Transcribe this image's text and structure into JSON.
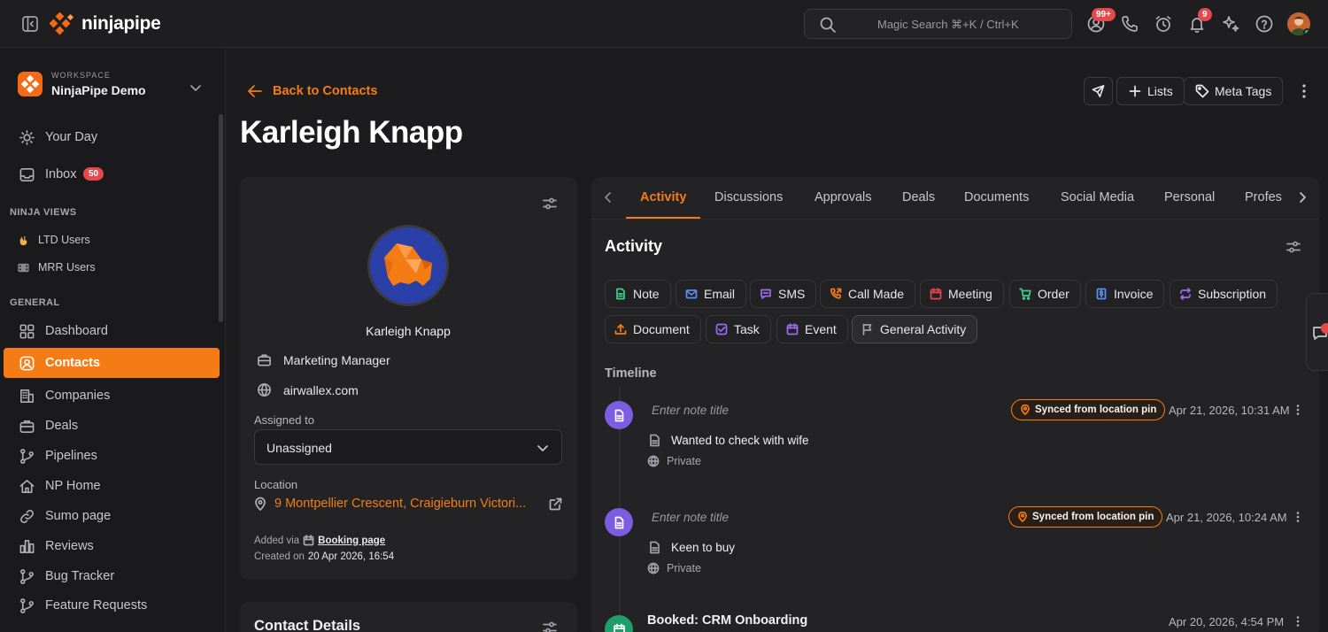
{
  "brand": {
    "name": "ninjapipe",
    "accent": "#f57c14"
  },
  "topbar": {
    "search_placeholder": "Magic Search ⌘+K / Ctrl+K",
    "mentions_badge": "99+",
    "notifications_badge": "9"
  },
  "workspace": {
    "caption": "WORKSPACE",
    "name": "NinjaPipe Demo"
  },
  "sidebar": {
    "your_day": "Your Day",
    "inbox": "Inbox",
    "inbox_count": "50",
    "ninja_views_title": "NINJA VIEWS",
    "views": [
      {
        "label": "LTD Users",
        "icon": "hand-horns-icon"
      },
      {
        "label": "MRR Users",
        "icon": "film-icon"
      }
    ],
    "general_title": "GENERAL",
    "items": [
      {
        "label": "Dashboard",
        "icon": "dashboard-icon"
      },
      {
        "label": "Contacts",
        "icon": "contact-icon",
        "active": true
      },
      {
        "label": "Companies",
        "icon": "building-icon"
      },
      {
        "label": "Deals",
        "icon": "briefcase-icon"
      },
      {
        "label": "Pipelines",
        "icon": "pipeline-icon"
      },
      {
        "label": "NP Home",
        "icon": "home-icon"
      },
      {
        "label": "Sumo page",
        "icon": "link-icon"
      },
      {
        "label": "Reviews",
        "icon": "bar-chart-icon"
      },
      {
        "label": "Bug Tracker",
        "icon": "pipeline-icon"
      },
      {
        "label": "Feature Requests",
        "icon": "pipeline-icon"
      }
    ]
  },
  "header": {
    "back_label": "Back to Contacts",
    "contact_name": "Karleigh Knapp",
    "lists_label": "Lists",
    "meta_tags_label": "Meta Tags"
  },
  "profile": {
    "name": "Karleigh Knapp",
    "job_title": "Marketing Manager",
    "website": "airwallex.com",
    "assigned_label": "Assigned to",
    "assigned_value": "Unassigned",
    "location_label": "Location",
    "location_value": "9 Montpellier Crescent, Craigieburn Victori...",
    "added_via_label": "Added via",
    "added_via_value": "Booking page",
    "created_label": "Created on",
    "created_value": "20 Apr 2026, 16:54",
    "contact_details_title": "Contact Details"
  },
  "tabs": [
    "Activity",
    "Discussions",
    "Approvals",
    "Deals",
    "Documents",
    "Social Media",
    "Personal",
    "Profes"
  ],
  "activity": {
    "title": "Activity",
    "chips": [
      {
        "label": "Note",
        "icon": "note-icon",
        "color": "#3ccf8e"
      },
      {
        "label": "Email",
        "icon": "email-icon",
        "color": "#5b8def"
      },
      {
        "label": "SMS",
        "icon": "sms-icon",
        "color": "#9b6cf0"
      },
      {
        "label": "Call Made",
        "icon": "phone-icon",
        "color": "#f57c14"
      },
      {
        "label": "Meeting",
        "icon": "calendar-icon",
        "color": "#e5484d"
      },
      {
        "label": "Order",
        "icon": "cart-icon",
        "color": "#3ccf8e"
      },
      {
        "label": "Invoice",
        "icon": "invoice-icon",
        "color": "#5b8def"
      },
      {
        "label": "Subscription",
        "icon": "repeat-icon",
        "color": "#9b6cf0"
      },
      {
        "label": "Document",
        "icon": "upload-icon",
        "color": "#f57c14"
      },
      {
        "label": "Task",
        "icon": "task-icon",
        "color": "#9b6cf0"
      },
      {
        "label": "Event",
        "icon": "calendar-icon",
        "color": "#9b6cf0"
      },
      {
        "label": "General Activity",
        "icon": "flag-icon",
        "color": "#a0a0a6"
      }
    ],
    "timeline_label": "Timeline",
    "entries": [
      {
        "title_placeholder": "Enter note title",
        "sync_label": "Synced from location pin",
        "timestamp": "Apr 21, 2026, 10:31 AM",
        "body": "Wanted to check with wife",
        "visibility": "Private"
      },
      {
        "title_placeholder": "Enter note title",
        "sync_label": "Synced from location pin",
        "timestamp": "Apr 21, 2026, 10:24 AM",
        "body": "Keen to buy",
        "visibility": "Private"
      },
      {
        "title": "Booked: CRM Onboarding",
        "timestamp": "Apr 20, 2026, 4:54 PM"
      }
    ]
  }
}
